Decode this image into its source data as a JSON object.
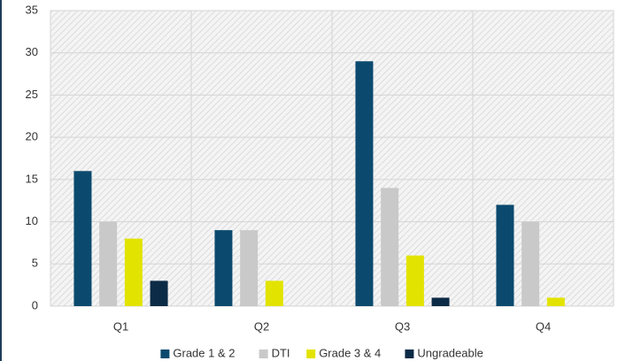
{
  "chart_data": {
    "type": "bar",
    "categories": [
      "Q1",
      "Q2",
      "Q3",
      "Q4"
    ],
    "series": [
      {
        "name": "Grade 1 & 2",
        "color": "#0b4a6e",
        "values": [
          16,
          9,
          29,
          12
        ]
      },
      {
        "name": "DTI",
        "color": "#c9c9c9",
        "values": [
          10,
          9,
          14,
          10
        ]
      },
      {
        "name": "Grade 3 & 4",
        "color": "#e3e300",
        "values": [
          8,
          3,
          6,
          1
        ]
      },
      {
        "name": "Ungradeable",
        "color": "#0c2b46",
        "values": [
          3,
          0,
          1,
          0
        ]
      }
    ],
    "ylim": [
      0,
      35
    ],
    "yticks": [
      0,
      5,
      10,
      15,
      20,
      25,
      30,
      35
    ],
    "grid": true,
    "legend": "bottom"
  }
}
